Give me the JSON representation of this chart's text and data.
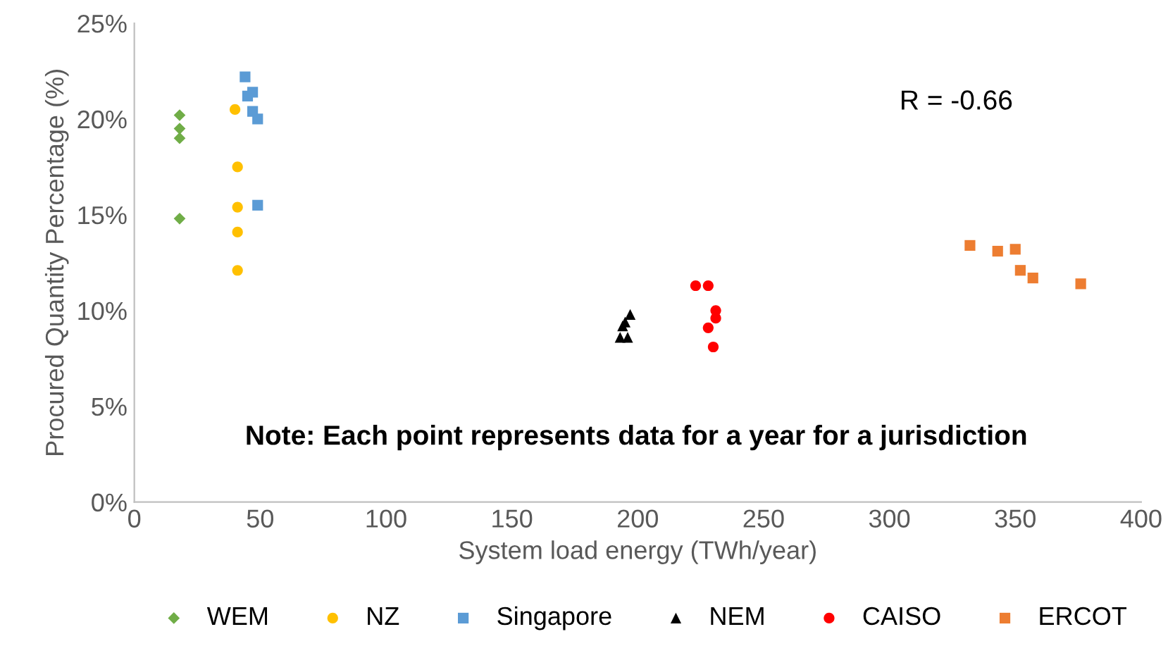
{
  "chart_data": {
    "type": "scatter",
    "xlabel": "System load energy (TWh/year)",
    "ylabel": "Procured Quantity Percentage (%)",
    "xlim": [
      0,
      400
    ],
    "xticks": [
      0,
      50,
      100,
      150,
      200,
      250,
      300,
      350,
      400
    ],
    "ylim": [
      0,
      25
    ],
    "yticks": [
      {
        "value": 0,
        "label": "0%"
      },
      {
        "value": 5,
        "label": "5%"
      },
      {
        "value": 10,
        "label": "10%"
      },
      {
        "value": 15,
        "label": "15%"
      },
      {
        "value": 20,
        "label": "20%"
      },
      {
        "value": 25,
        "label": "25%"
      }
    ],
    "grid": false,
    "legend": "bottom",
    "annotations": [
      "R = -0.66",
      "Note: Each point represents data for a year for a jurisdiction"
    ],
    "series": [
      {
        "name": "WEM",
        "color": "#70ad47",
        "marker": "diamond",
        "x": [
          18,
          18,
          18,
          18
        ],
        "values": [
          20.2,
          19.5,
          19.0,
          14.8
        ]
      },
      {
        "name": "NZ",
        "color": "#ffc000",
        "marker": "circle",
        "x": [
          40,
          41,
          41,
          41,
          41
        ],
        "values": [
          20.5,
          17.5,
          15.4,
          14.1,
          12.1
        ]
      },
      {
        "name": "Singapore",
        "color": "#5b9bd5",
        "marker": "square",
        "x": [
          44,
          45,
          47,
          47,
          49,
          49
        ],
        "values": [
          22.2,
          21.2,
          21.4,
          20.4,
          20.0,
          15.5
        ]
      },
      {
        "name": "NEM",
        "color": "#000000",
        "marker": "triangle",
        "x": [
          193,
          196,
          194,
          195,
          197
        ],
        "values": [
          8.6,
          8.6,
          9.2,
          9.4,
          9.8
        ]
      },
      {
        "name": "CAISO",
        "color": "#ff0000",
        "marker": "circle",
        "x": [
          223,
          228,
          231,
          231,
          228,
          230
        ],
        "values": [
          11.3,
          11.3,
          10.0,
          9.6,
          9.1,
          8.1
        ]
      },
      {
        "name": "ERCOT",
        "color": "#ed7d31",
        "marker": "square",
        "x": [
          332,
          343,
          350,
          352,
          357,
          376
        ],
        "values": [
          13.4,
          13.1,
          13.2,
          12.1,
          11.7,
          11.4
        ]
      }
    ]
  }
}
